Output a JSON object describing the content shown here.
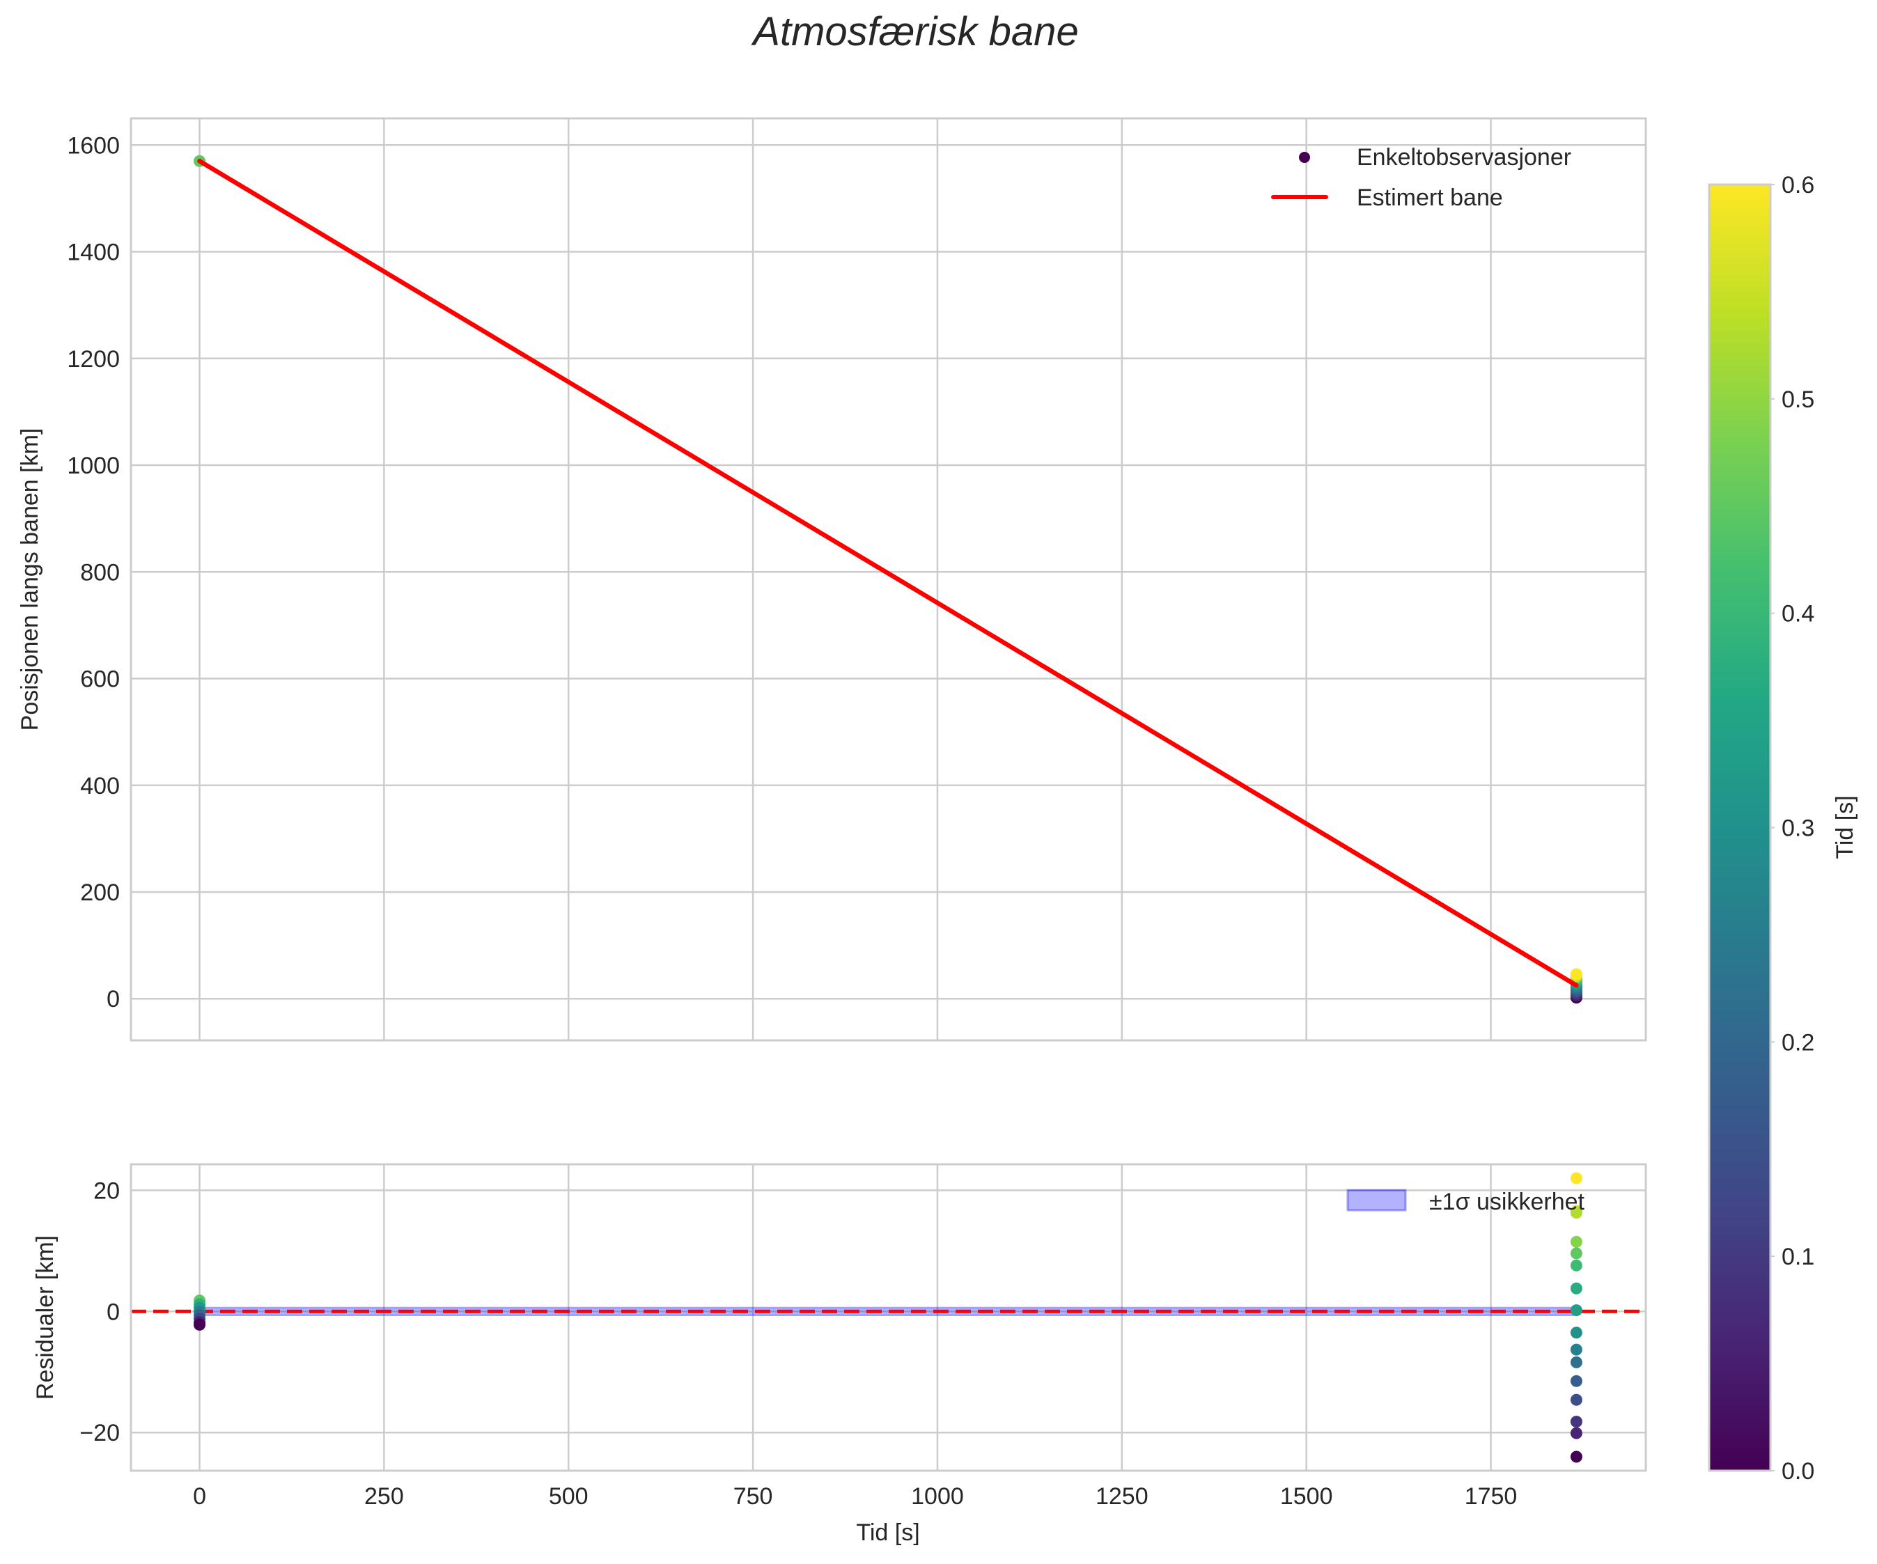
{
  "figure": {
    "title": "Atmosfærisk bane"
  },
  "chart_data": [
    {
      "type": "scatter+line",
      "panel": "top",
      "title": "",
      "xlabel": "",
      "ylabel": "Posisjonen langs banen [km]",
      "xlim": [
        -93,
        1960
      ],
      "ylim": [
        -78,
        1650
      ],
      "xticks": [
        0,
        250,
        500,
        750,
        1000,
        1250,
        1500,
        1750
      ],
      "yticks": [
        0,
        200,
        400,
        600,
        800,
        1000,
        1200,
        1400,
        1600
      ],
      "grid": true,
      "legend": {
        "position": "upper right",
        "entries": [
          "Enkeltobservasjoner",
          "Estimert bane"
        ]
      },
      "series": [
        {
          "name": "Enkeltobservasjoner",
          "kind": "scatter",
          "colormap": "viridis",
          "color_by": "Tid [s]",
          "points": [
            {
              "x": 0,
              "y": 1570,
              "c": 0.45
            },
            {
              "x": 1866,
              "y": 2,
              "c": 0.0
            },
            {
              "x": 1866,
              "y": 6,
              "c": 0.05
            },
            {
              "x": 1866,
              "y": 10,
              "c": 0.1
            },
            {
              "x": 1866,
              "y": 14,
              "c": 0.15
            },
            {
              "x": 1866,
              "y": 18,
              "c": 0.2
            },
            {
              "x": 1866,
              "y": 22,
              "c": 0.25
            },
            {
              "x": 1866,
              "y": 26,
              "c": 0.3
            },
            {
              "x": 1866,
              "y": 30,
              "c": 0.35
            },
            {
              "x": 1866,
              "y": 34,
              "c": 0.4
            },
            {
              "x": 1866,
              "y": 38,
              "c": 0.45
            },
            {
              "x": 1866,
              "y": 42,
              "c": 0.55
            },
            {
              "x": 1866,
              "y": 46,
              "c": 0.6
            }
          ]
        },
        {
          "name": "Estimert bane",
          "kind": "line",
          "color": "#ff0000",
          "x": [
            0,
            1866
          ],
          "y": [
            1570,
            25
          ]
        }
      ]
    },
    {
      "type": "scatter",
      "panel": "bottom",
      "xlabel": "Tid [s]",
      "ylabel": "Residualer [km]",
      "xlim": [
        -93,
        1960
      ],
      "ylim": [
        -26.3,
        24.3
      ],
      "xticks": [
        0,
        250,
        500,
        750,
        1000,
        1250,
        1500,
        1750
      ],
      "yticks": [
        -20,
        0,
        20
      ],
      "yticklabels": [
        "−20",
        "0",
        "20"
      ],
      "grid": true,
      "legend": {
        "position": "upper right",
        "entries": [
          "±1σ usikkerhet"
        ]
      },
      "zero_line": {
        "y": 0,
        "color": "#ff0000",
        "style": "dashed"
      },
      "band": {
        "name": "±1σ usikkerhet",
        "x": [
          0,
          1866
        ],
        "lower": -0.3,
        "upper": 0.3,
        "color": "#0000ff",
        "alpha": 0.3
      },
      "series": [
        {
          "name": "residuals_start",
          "x": 0,
          "points": [
            {
              "y": 1.8,
              "c": 0.45
            },
            {
              "y": 1.2,
              "c": 0.38
            },
            {
              "y": 0.6,
              "c": 0.32
            },
            {
              "y": 0.0,
              "c": 0.26
            },
            {
              "y": -0.6,
              "c": 0.2
            },
            {
              "y": -1.2,
              "c": 0.12
            },
            {
              "y": -1.8,
              "c": 0.05
            },
            {
              "y": -2.2,
              "c": 0.0
            }
          ]
        },
        {
          "name": "residuals_end",
          "x": 1866,
          "points": [
            {
              "y": 22.0,
              "c": 0.6
            },
            {
              "y": 16.6,
              "c": 0.57
            },
            {
              "y": 16.3,
              "c": 0.53
            },
            {
              "y": 11.5,
              "c": 0.49
            },
            {
              "y": 9.6,
              "c": 0.45
            },
            {
              "y": 7.6,
              "c": 0.41
            },
            {
              "y": 3.8,
              "c": 0.37
            },
            {
              "y": 0.2,
              "c": 0.33
            },
            {
              "y": -3.5,
              "c": 0.3
            },
            {
              "y": -6.3,
              "c": 0.26
            },
            {
              "y": -8.4,
              "c": 0.22
            },
            {
              "y": -11.5,
              "c": 0.18
            },
            {
              "y": -14.6,
              "c": 0.14
            },
            {
              "y": -18.2,
              "c": 0.09
            },
            {
              "y": -20.1,
              "c": 0.06
            },
            {
              "y": -24.0,
              "c": 0.0
            }
          ]
        }
      ]
    }
  ],
  "colorbar": {
    "label": "Tid [s]",
    "colormap": "viridis",
    "min": 0.0,
    "max": 0.6,
    "ticks": [
      "0.0",
      "0.1",
      "0.2",
      "0.3",
      "0.4",
      "0.5",
      "0.6"
    ]
  },
  "colors": {
    "line": "#ff0000",
    "grid": "#cccccc",
    "band": "#0000ff",
    "text": "#262626"
  }
}
